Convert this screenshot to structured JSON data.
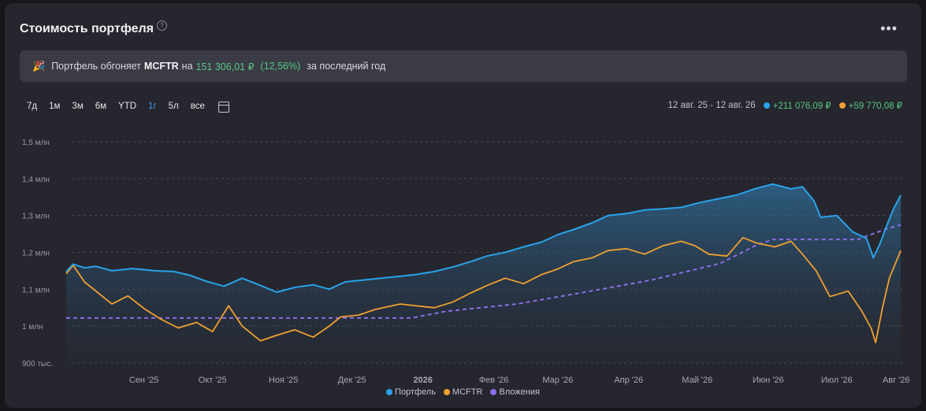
{
  "header": {
    "title": "Стоимость портфеля",
    "help_glyph": "?",
    "more_glyph": "•••"
  },
  "banner": {
    "party_glyph": "🎉",
    "text_before": "Портфель обгоняет",
    "benchmark": "MCFTR",
    "text_mid": "на",
    "amount": "151 306,01 ₽",
    "percent": "(12,56%)",
    "text_after": "за последний год"
  },
  "ranges": {
    "items": [
      "7д",
      "1м",
      "3м",
      "6м",
      "YTD",
      "1г",
      "5л",
      "все"
    ],
    "active": "1г"
  },
  "summary": {
    "period": "12 авг. 25 - 12 авг. 26",
    "portfolio_change": "+211 076,09 ₽",
    "mcftr_change": "+59 770,08 ₽"
  },
  "colors": {
    "portfolio": "#29a3ea",
    "mcftr": "#f0a030",
    "investments": "#8b6fe8",
    "positive": "#57c785",
    "active_tab": "#3b9ae8"
  },
  "chart_data": {
    "type": "line",
    "y_unit": "₽",
    "ylim": [
      900000,
      1500000
    ],
    "y_ticks": [
      {
        "value": 1500000,
        "label": "1,5 млн"
      },
      {
        "value": 1400000,
        "label": "1,4 млн"
      },
      {
        "value": 1300000,
        "label": "1,3 млн"
      },
      {
        "value": 1200000,
        "label": "1,2 млн"
      },
      {
        "value": 1100000,
        "label": "1,1 млн"
      },
      {
        "value": 1000000,
        "label": "1 млн"
      },
      {
        "value": 900000,
        "label": "900 тыс."
      }
    ],
    "x_range": [
      "2025-08-12",
      "2026-08-12"
    ],
    "x_ticks": [
      {
        "date": "2025-09-15",
        "label": "Сен '25"
      },
      {
        "date": "2025-10-15",
        "label": "Окт '25"
      },
      {
        "date": "2025-11-15",
        "label": "Ноя '25"
      },
      {
        "date": "2025-12-15",
        "label": "Дек '25"
      },
      {
        "date": "2026-01-15",
        "label": "2026"
      },
      {
        "date": "2026-02-15",
        "label": "Фев '26"
      },
      {
        "date": "2026-03-15",
        "label": "Мар '26"
      },
      {
        "date": "2026-04-15",
        "label": "Апр '26"
      },
      {
        "date": "2026-05-15",
        "label": "Май '26"
      },
      {
        "date": "2026-06-15",
        "label": "Июн '26"
      },
      {
        "date": "2026-07-15",
        "label": "Июл '26"
      },
      {
        "date": "2026-08-10",
        "label": "Авг '26"
      }
    ],
    "grid": true,
    "legend_position": "bottom",
    "series": [
      {
        "name": "Портфель",
        "color": "#29a3ea",
        "style": "solid-area",
        "points": [
          [
            "2025-08-12",
            1148000
          ],
          [
            "2025-08-15",
            1168000
          ],
          [
            "2025-08-20",
            1158000
          ],
          [
            "2025-08-25",
            1162000
          ],
          [
            "2025-09-01",
            1150000
          ],
          [
            "2025-09-10",
            1156000
          ],
          [
            "2025-09-20",
            1150000
          ],
          [
            "2025-09-28",
            1148000
          ],
          [
            "2025-10-05",
            1138000
          ],
          [
            "2025-10-12",
            1122000
          ],
          [
            "2025-10-20",
            1108000
          ],
          [
            "2025-10-28",
            1130000
          ],
          [
            "2025-11-05",
            1110000
          ],
          [
            "2025-11-12",
            1092000
          ],
          [
            "2025-11-20",
            1105000
          ],
          [
            "2025-11-28",
            1112000
          ],
          [
            "2025-12-05",
            1100000
          ],
          [
            "2025-12-12",
            1120000
          ],
          [
            "2025-12-20",
            1125000
          ],
          [
            "2025-12-28",
            1130000
          ],
          [
            "2026-01-05",
            1135000
          ],
          [
            "2026-01-12",
            1140000
          ],
          [
            "2026-01-20",
            1148000
          ],
          [
            "2026-01-28",
            1160000
          ],
          [
            "2026-02-05",
            1175000
          ],
          [
            "2026-02-12",
            1190000
          ],
          [
            "2026-02-20",
            1200000
          ],
          [
            "2026-02-28",
            1215000
          ],
          [
            "2026-03-08",
            1228000
          ],
          [
            "2026-03-15",
            1248000
          ],
          [
            "2026-03-22",
            1262000
          ],
          [
            "2026-03-30",
            1280000
          ],
          [
            "2026-04-06",
            1300000
          ],
          [
            "2026-04-14",
            1305000
          ],
          [
            "2026-04-22",
            1315000
          ],
          [
            "2026-04-30",
            1318000
          ],
          [
            "2026-05-08",
            1322000
          ],
          [
            "2026-05-16",
            1335000
          ],
          [
            "2026-05-24",
            1345000
          ],
          [
            "2026-06-01",
            1355000
          ],
          [
            "2026-06-09",
            1372000
          ],
          [
            "2026-06-17",
            1385000
          ],
          [
            "2026-06-25",
            1372000
          ],
          [
            "2026-06-30",
            1378000
          ],
          [
            "2026-07-05",
            1340000
          ],
          [
            "2026-07-08",
            1295000
          ],
          [
            "2026-07-15",
            1300000
          ],
          [
            "2026-07-22",
            1255000
          ],
          [
            "2026-07-28",
            1238000
          ],
          [
            "2026-07-31",
            1185000
          ],
          [
            "2026-08-03",
            1225000
          ],
          [
            "2026-08-06",
            1275000
          ],
          [
            "2026-08-09",
            1320000
          ],
          [
            "2026-08-12",
            1355000
          ]
        ]
      },
      {
        "name": "MCFTR",
        "color": "#f0a030",
        "style": "solid",
        "points": [
          [
            "2025-08-12",
            1142000
          ],
          [
            "2025-08-15",
            1165000
          ],
          [
            "2025-08-20",
            1120000
          ],
          [
            "2025-08-25",
            1095000
          ],
          [
            "2025-09-01",
            1060000
          ],
          [
            "2025-09-08",
            1082000
          ],
          [
            "2025-09-15",
            1048000
          ],
          [
            "2025-09-22",
            1020000
          ],
          [
            "2025-09-30",
            995000
          ],
          [
            "2025-10-08",
            1010000
          ],
          [
            "2025-10-15",
            985000
          ],
          [
            "2025-10-22",
            1055000
          ],
          [
            "2025-10-28",
            1000000
          ],
          [
            "2025-11-05",
            960000
          ],
          [
            "2025-11-12",
            975000
          ],
          [
            "2025-11-20",
            990000
          ],
          [
            "2025-11-28",
            970000
          ],
          [
            "2025-12-05",
            1000000
          ],
          [
            "2025-12-10",
            1025000
          ],
          [
            "2025-12-18",
            1030000
          ],
          [
            "2025-12-25",
            1045000
          ],
          [
            "2026-01-05",
            1060000
          ],
          [
            "2026-01-12",
            1055000
          ],
          [
            "2026-01-20",
            1050000
          ],
          [
            "2026-01-28",
            1065000
          ],
          [
            "2026-02-05",
            1090000
          ],
          [
            "2026-02-12",
            1110000
          ],
          [
            "2026-02-20",
            1130000
          ],
          [
            "2026-02-28",
            1115000
          ],
          [
            "2026-03-08",
            1140000
          ],
          [
            "2026-03-15",
            1155000
          ],
          [
            "2026-03-22",
            1175000
          ],
          [
            "2026-03-30",
            1185000
          ],
          [
            "2026-04-06",
            1205000
          ],
          [
            "2026-04-14",
            1210000
          ],
          [
            "2026-04-22",
            1195000
          ],
          [
            "2026-04-30",
            1218000
          ],
          [
            "2026-05-08",
            1230000
          ],
          [
            "2026-05-14",
            1218000
          ],
          [
            "2026-05-20",
            1195000
          ],
          [
            "2026-05-28",
            1190000
          ],
          [
            "2026-06-04",
            1240000
          ],
          [
            "2026-06-10",
            1225000
          ],
          [
            "2026-06-18",
            1215000
          ],
          [
            "2026-06-25",
            1230000
          ],
          [
            "2026-06-30",
            1195000
          ],
          [
            "2026-07-06",
            1150000
          ],
          [
            "2026-07-12",
            1080000
          ],
          [
            "2026-07-20",
            1095000
          ],
          [
            "2026-07-26",
            1040000
          ],
          [
            "2026-07-30",
            995000
          ],
          [
            "2026-08-01",
            955000
          ],
          [
            "2026-08-04",
            1050000
          ],
          [
            "2026-08-07",
            1130000
          ],
          [
            "2026-08-10",
            1175000
          ],
          [
            "2026-08-12",
            1205000
          ]
        ]
      },
      {
        "name": "Вложения",
        "color": "#8b6fe8",
        "style": "dashed",
        "points": [
          [
            "2025-08-12",
            1022000
          ],
          [
            "2026-01-10",
            1022000
          ],
          [
            "2026-01-25",
            1040000
          ],
          [
            "2026-02-25",
            1060000
          ],
          [
            "2026-03-25",
            1090000
          ],
          [
            "2026-04-25",
            1125000
          ],
          [
            "2026-05-25",
            1170000
          ],
          [
            "2026-06-10",
            1220000
          ],
          [
            "2026-06-17",
            1235000
          ],
          [
            "2026-07-24",
            1235000
          ],
          [
            "2026-08-05",
            1262000
          ],
          [
            "2026-08-12",
            1275000
          ]
        ]
      }
    ]
  }
}
